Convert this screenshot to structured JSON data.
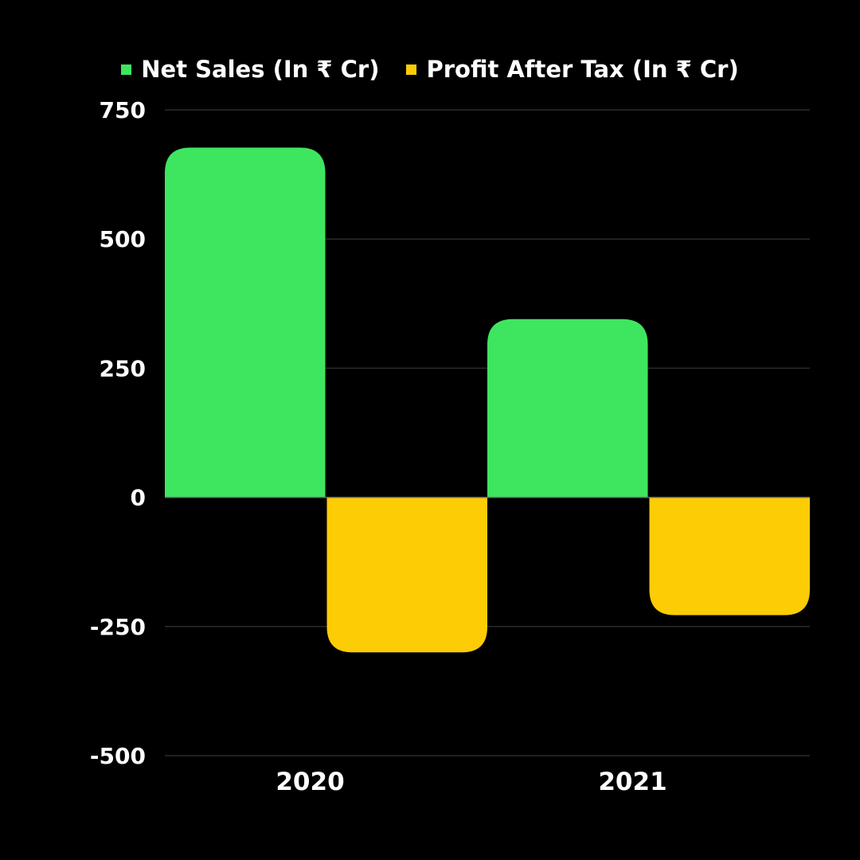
{
  "chart_data": {
    "type": "bar",
    "categories": [
      "2020",
      "2021"
    ],
    "series": [
      {
        "name": "Net Sales (In ₹ Cr)",
        "color": "#3ee660",
        "values": [
          677,
          345
        ]
      },
      {
        "name": "Profit After Tax (In ₹ Cr)",
        "color": "#fccc05",
        "values": [
          -300,
          -228
        ]
      }
    ],
    "ylim": [
      -500,
      750
    ],
    "yticks": [
      750,
      500,
      250,
      0,
      -250,
      -500
    ],
    "grid": true,
    "legend_position": "top-center"
  }
}
